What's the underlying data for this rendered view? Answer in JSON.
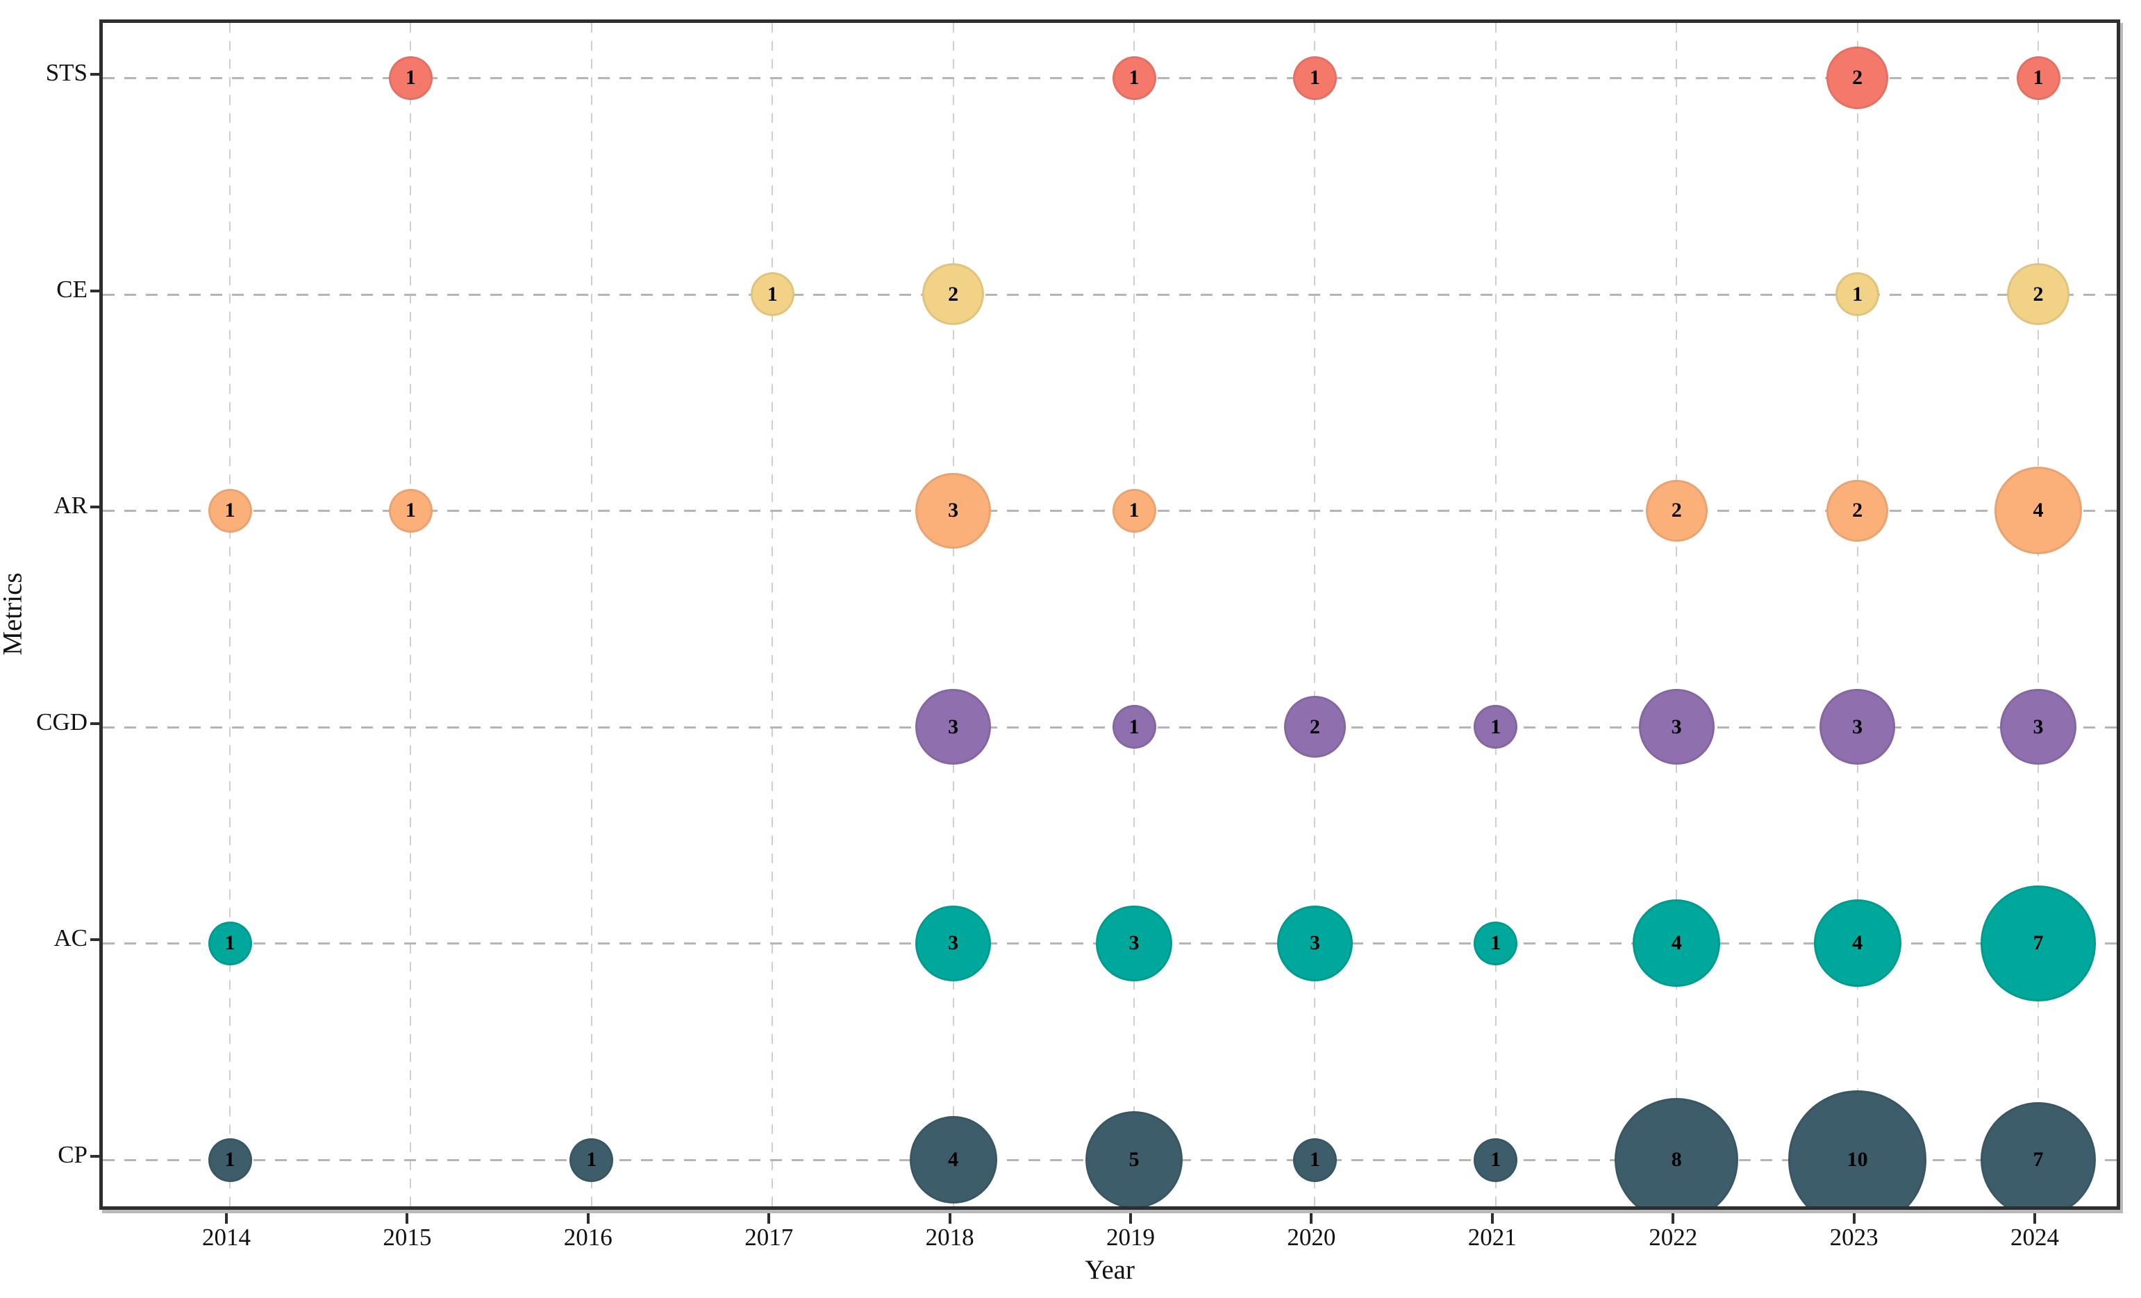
{
  "chart_data": {
    "type": "scatter",
    "subtype": "bubble",
    "title": "",
    "xlabel": "Year",
    "ylabel": "Metrics",
    "x_categories": [
      "2014",
      "2015",
      "2016",
      "2017",
      "2018",
      "2019",
      "2020",
      "2021",
      "2022",
      "2023",
      "2024"
    ],
    "y_categories_top_to_bottom": [
      "STS",
      "CE",
      "AR",
      "CGD",
      "AC",
      "CP"
    ],
    "grid": "dashed gridlines on both axes",
    "legend_position": "none",
    "size_encoding": "bubble area proportional to value; value printed inside each bubble",
    "series": [
      {
        "name": "STS",
        "color": "#f4796b",
        "points": [
          {
            "year": "2015",
            "value": 1
          },
          {
            "year": "2019",
            "value": 1
          },
          {
            "year": "2020",
            "value": 1
          },
          {
            "year": "2023",
            "value": 2
          },
          {
            "year": "2024",
            "value": 1
          }
        ]
      },
      {
        "name": "CE",
        "color": "#f2d287",
        "points": [
          {
            "year": "2017",
            "value": 1
          },
          {
            "year": "2018",
            "value": 2
          },
          {
            "year": "2023",
            "value": 1
          },
          {
            "year": "2024",
            "value": 2
          }
        ]
      },
      {
        "name": "AR",
        "color": "#fbb07a",
        "points": [
          {
            "year": "2014",
            "value": 1
          },
          {
            "year": "2015",
            "value": 1
          },
          {
            "year": "2018",
            "value": 3
          },
          {
            "year": "2019",
            "value": 1
          },
          {
            "year": "2022",
            "value": 2
          },
          {
            "year": "2023",
            "value": 2
          },
          {
            "year": "2024",
            "value": 4
          }
        ]
      },
      {
        "name": "CGD",
        "color": "#8f6fae",
        "points": [
          {
            "year": "2018",
            "value": 3
          },
          {
            "year": "2019",
            "value": 1
          },
          {
            "year": "2020",
            "value": 2
          },
          {
            "year": "2021",
            "value": 1
          },
          {
            "year": "2022",
            "value": 3
          },
          {
            "year": "2023",
            "value": 3
          },
          {
            "year": "2024",
            "value": 3
          }
        ]
      },
      {
        "name": "AC",
        "color": "#00a79b",
        "points": [
          {
            "year": "2014",
            "value": 1
          },
          {
            "year": "2018",
            "value": 3
          },
          {
            "year": "2019",
            "value": 3
          },
          {
            "year": "2020",
            "value": 3
          },
          {
            "year": "2021",
            "value": 1
          },
          {
            "year": "2022",
            "value": 4
          },
          {
            "year": "2023",
            "value": 4
          },
          {
            "year": "2024",
            "value": 7
          }
        ]
      },
      {
        "name": "CP",
        "color": "#3e5d6b",
        "points": [
          {
            "year": "2014",
            "value": 1
          },
          {
            "year": "2016",
            "value": 1
          },
          {
            "year": "2018",
            "value": 4
          },
          {
            "year": "2019",
            "value": 5
          },
          {
            "year": "2020",
            "value": 1
          },
          {
            "year": "2021",
            "value": 1
          },
          {
            "year": "2022",
            "value": 8
          },
          {
            "year": "2023",
            "value": 10
          },
          {
            "year": "2024",
            "value": 7
          }
        ]
      }
    ]
  }
}
